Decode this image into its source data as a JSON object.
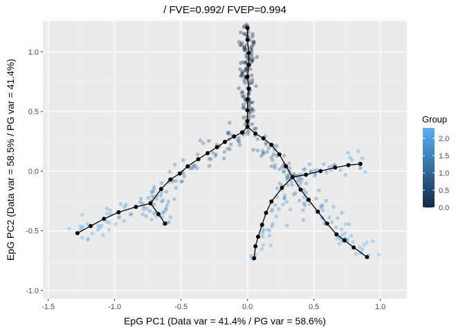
{
  "chart_data": {
    "type": "scatter",
    "title": "/ FVE=0.992/ FVEP=0.994",
    "xlabel": "EpG PC1 (Data var = 41.4% / PG var = 58.6%)",
    "ylabel": "EpG PC2 (Data var = 58.5% / PG var = 41.4%)",
    "xlim": [
      -1.54,
      1.2
    ],
    "ylim": [
      -1.07,
      1.26
    ],
    "x_ticks": [
      -1.5,
      -1.0,
      -0.5,
      0.0,
      0.5,
      1.0
    ],
    "x_tick_labels": [
      "-1.5",
      "-1.0",
      "-0.5",
      "0.0",
      "0.5",
      "1.0"
    ],
    "y_ticks": [
      -1.0,
      -0.5,
      0.0,
      0.5,
      1.0
    ],
    "y_tick_labels": [
      "-1.0",
      "-0.5",
      "0.0",
      "0.5",
      "1.0"
    ],
    "grid": true,
    "background": "#ebebeb",
    "legend": {
      "title": "Group",
      "position": "right",
      "type": "colorbar",
      "range": [
        0.0,
        2.3
      ],
      "ticks": [
        0.0,
        0.5,
        1.0,
        1.5,
        2.0
      ],
      "tick_labels": [
        "0.0",
        "0.5",
        "1.0",
        "1.5",
        "2.0"
      ],
      "color_low": "#132b43",
      "color_high": "#56b1f7"
    },
    "points": {
      "description_of_groups": "Scattered data points colored by Group value along principal graph branches",
      "branches": [
        {
          "from": [
            0.0,
            0.37
          ],
          "to": [
            0.0,
            1.2
          ],
          "group_start": 0.2,
          "group_end": 0.0,
          "count": 130,
          "spread": 0.03
        },
        {
          "from": [
            0.0,
            0.37
          ],
          "to": [
            -0.73,
            -0.27
          ],
          "group_start": 0.6,
          "group_end": 1.6,
          "count": 70,
          "spread": 0.05
        },
        {
          "from": [
            -0.73,
            -0.27
          ],
          "to": [
            -1.28,
            -0.52
          ],
          "group_start": 1.6,
          "group_end": 2.3,
          "count": 40,
          "spread": 0.05
        },
        {
          "from": [
            -0.73,
            -0.27
          ],
          "to": [
            -0.62,
            -0.44
          ],
          "group_start": 1.5,
          "group_end": 1.9,
          "count": 18,
          "spread": 0.04
        },
        {
          "from": [
            0.0,
            0.37
          ],
          "to": [
            0.34,
            -0.05
          ],
          "group_start": 0.6,
          "group_end": 1.3,
          "count": 40,
          "spread": 0.04
        },
        {
          "from": [
            0.34,
            -0.05
          ],
          "to": [
            0.85,
            0.06
          ],
          "group_start": 1.3,
          "group_end": 2.0,
          "count": 35,
          "spread": 0.04
        },
        {
          "from": [
            0.34,
            -0.05
          ],
          "to": [
            0.9,
            -0.72
          ],
          "group_start": 1.3,
          "group_end": 2.3,
          "count": 60,
          "spread": 0.05
        },
        {
          "from": [
            0.34,
            -0.05
          ],
          "to": [
            0.05,
            -0.73
          ],
          "group_start": 1.4,
          "group_end": 2.2,
          "count": 45,
          "spread": 0.04
        }
      ]
    },
    "graph_nodes": [
      [
        0.0,
        0.37
      ],
      [
        -0.04,
        0.325
      ],
      [
        -0.1,
        0.29
      ],
      [
        -0.17,
        0.245
      ],
      [
        -0.23,
        0.2
      ],
      [
        -0.3,
        0.15
      ],
      [
        -0.37,
        0.1
      ],
      [
        -0.45,
        0.04
      ],
      [
        -0.51,
        -0.02
      ],
      [
        -0.58,
        -0.07
      ],
      [
        -0.65,
        -0.15
      ],
      [
        -0.73,
        -0.27
      ],
      [
        -0.84,
        -0.3
      ],
      [
        -0.97,
        -0.345
      ],
      [
        -1.08,
        -0.4
      ],
      [
        -1.18,
        -0.46
      ],
      [
        -1.28,
        -0.52
      ],
      [
        -0.67,
        -0.36
      ],
      [
        -0.62,
        -0.44
      ],
      [
        0.06,
        0.315
      ],
      [
        0.12,
        0.275
      ],
      [
        0.18,
        0.22
      ],
      [
        0.24,
        0.14
      ],
      [
        0.29,
        0.04
      ],
      [
        0.34,
        -0.05
      ],
      [
        0.44,
        -0.03
      ],
      [
        0.55,
        0.0
      ],
      [
        0.66,
        0.03
      ],
      [
        0.76,
        0.05
      ],
      [
        0.85,
        0.06
      ],
      [
        0.4,
        -0.155
      ],
      [
        0.46,
        -0.24
      ],
      [
        0.53,
        -0.34
      ],
      [
        0.6,
        -0.44
      ],
      [
        0.67,
        -0.53
      ],
      [
        0.73,
        -0.58
      ],
      [
        0.8,
        -0.64
      ],
      [
        0.9,
        -0.72
      ],
      [
        0.26,
        -0.14
      ],
      [
        0.18,
        -0.255
      ],
      [
        0.14,
        -0.35
      ],
      [
        0.11,
        -0.45
      ],
      [
        0.08,
        -0.55
      ],
      [
        0.06,
        -0.63
      ],
      [
        0.05,
        -0.73
      ],
      [
        0.0,
        0.42
      ],
      [
        0.0,
        0.51
      ],
      [
        0.0,
        0.6
      ],
      [
        0.01,
        0.69
      ],
      [
        0.0,
        0.79
      ],
      [
        0.01,
        0.89
      ],
      [
        0.01,
        0.99
      ],
      [
        0.0,
        1.1
      ],
      [
        0.0,
        1.2
      ]
    ],
    "graph_edges": [
      [
        0,
        1
      ],
      [
        1,
        2
      ],
      [
        2,
        3
      ],
      [
        3,
        4
      ],
      [
        4,
        5
      ],
      [
        5,
        6
      ],
      [
        6,
        7
      ],
      [
        7,
        8
      ],
      [
        8,
        9
      ],
      [
        9,
        10
      ],
      [
        10,
        11
      ],
      [
        11,
        12
      ],
      [
        12,
        13
      ],
      [
        13,
        14
      ],
      [
        14,
        15
      ],
      [
        15,
        16
      ],
      [
        11,
        17
      ],
      [
        17,
        18
      ],
      [
        0,
        19
      ],
      [
        19,
        20
      ],
      [
        20,
        21
      ],
      [
        21,
        22
      ],
      [
        22,
        23
      ],
      [
        23,
        24
      ],
      [
        24,
        25
      ],
      [
        25,
        26
      ],
      [
        26,
        27
      ],
      [
        27,
        28
      ],
      [
        28,
        29
      ],
      [
        24,
        30
      ],
      [
        30,
        31
      ],
      [
        31,
        32
      ],
      [
        32,
        33
      ],
      [
        33,
        34
      ],
      [
        34,
        35
      ],
      [
        35,
        36
      ],
      [
        36,
        37
      ],
      [
        24,
        38
      ],
      [
        38,
        39
      ],
      [
        39,
        40
      ],
      [
        40,
        41
      ],
      [
        41,
        42
      ],
      [
        42,
        43
      ],
      [
        43,
        44
      ],
      [
        0,
        45
      ],
      [
        45,
        46
      ],
      [
        46,
        47
      ],
      [
        47,
        48
      ],
      [
        48,
        49
      ],
      [
        49,
        50
      ],
      [
        50,
        51
      ],
      [
        51,
        52
      ],
      [
        52,
        53
      ]
    ]
  }
}
